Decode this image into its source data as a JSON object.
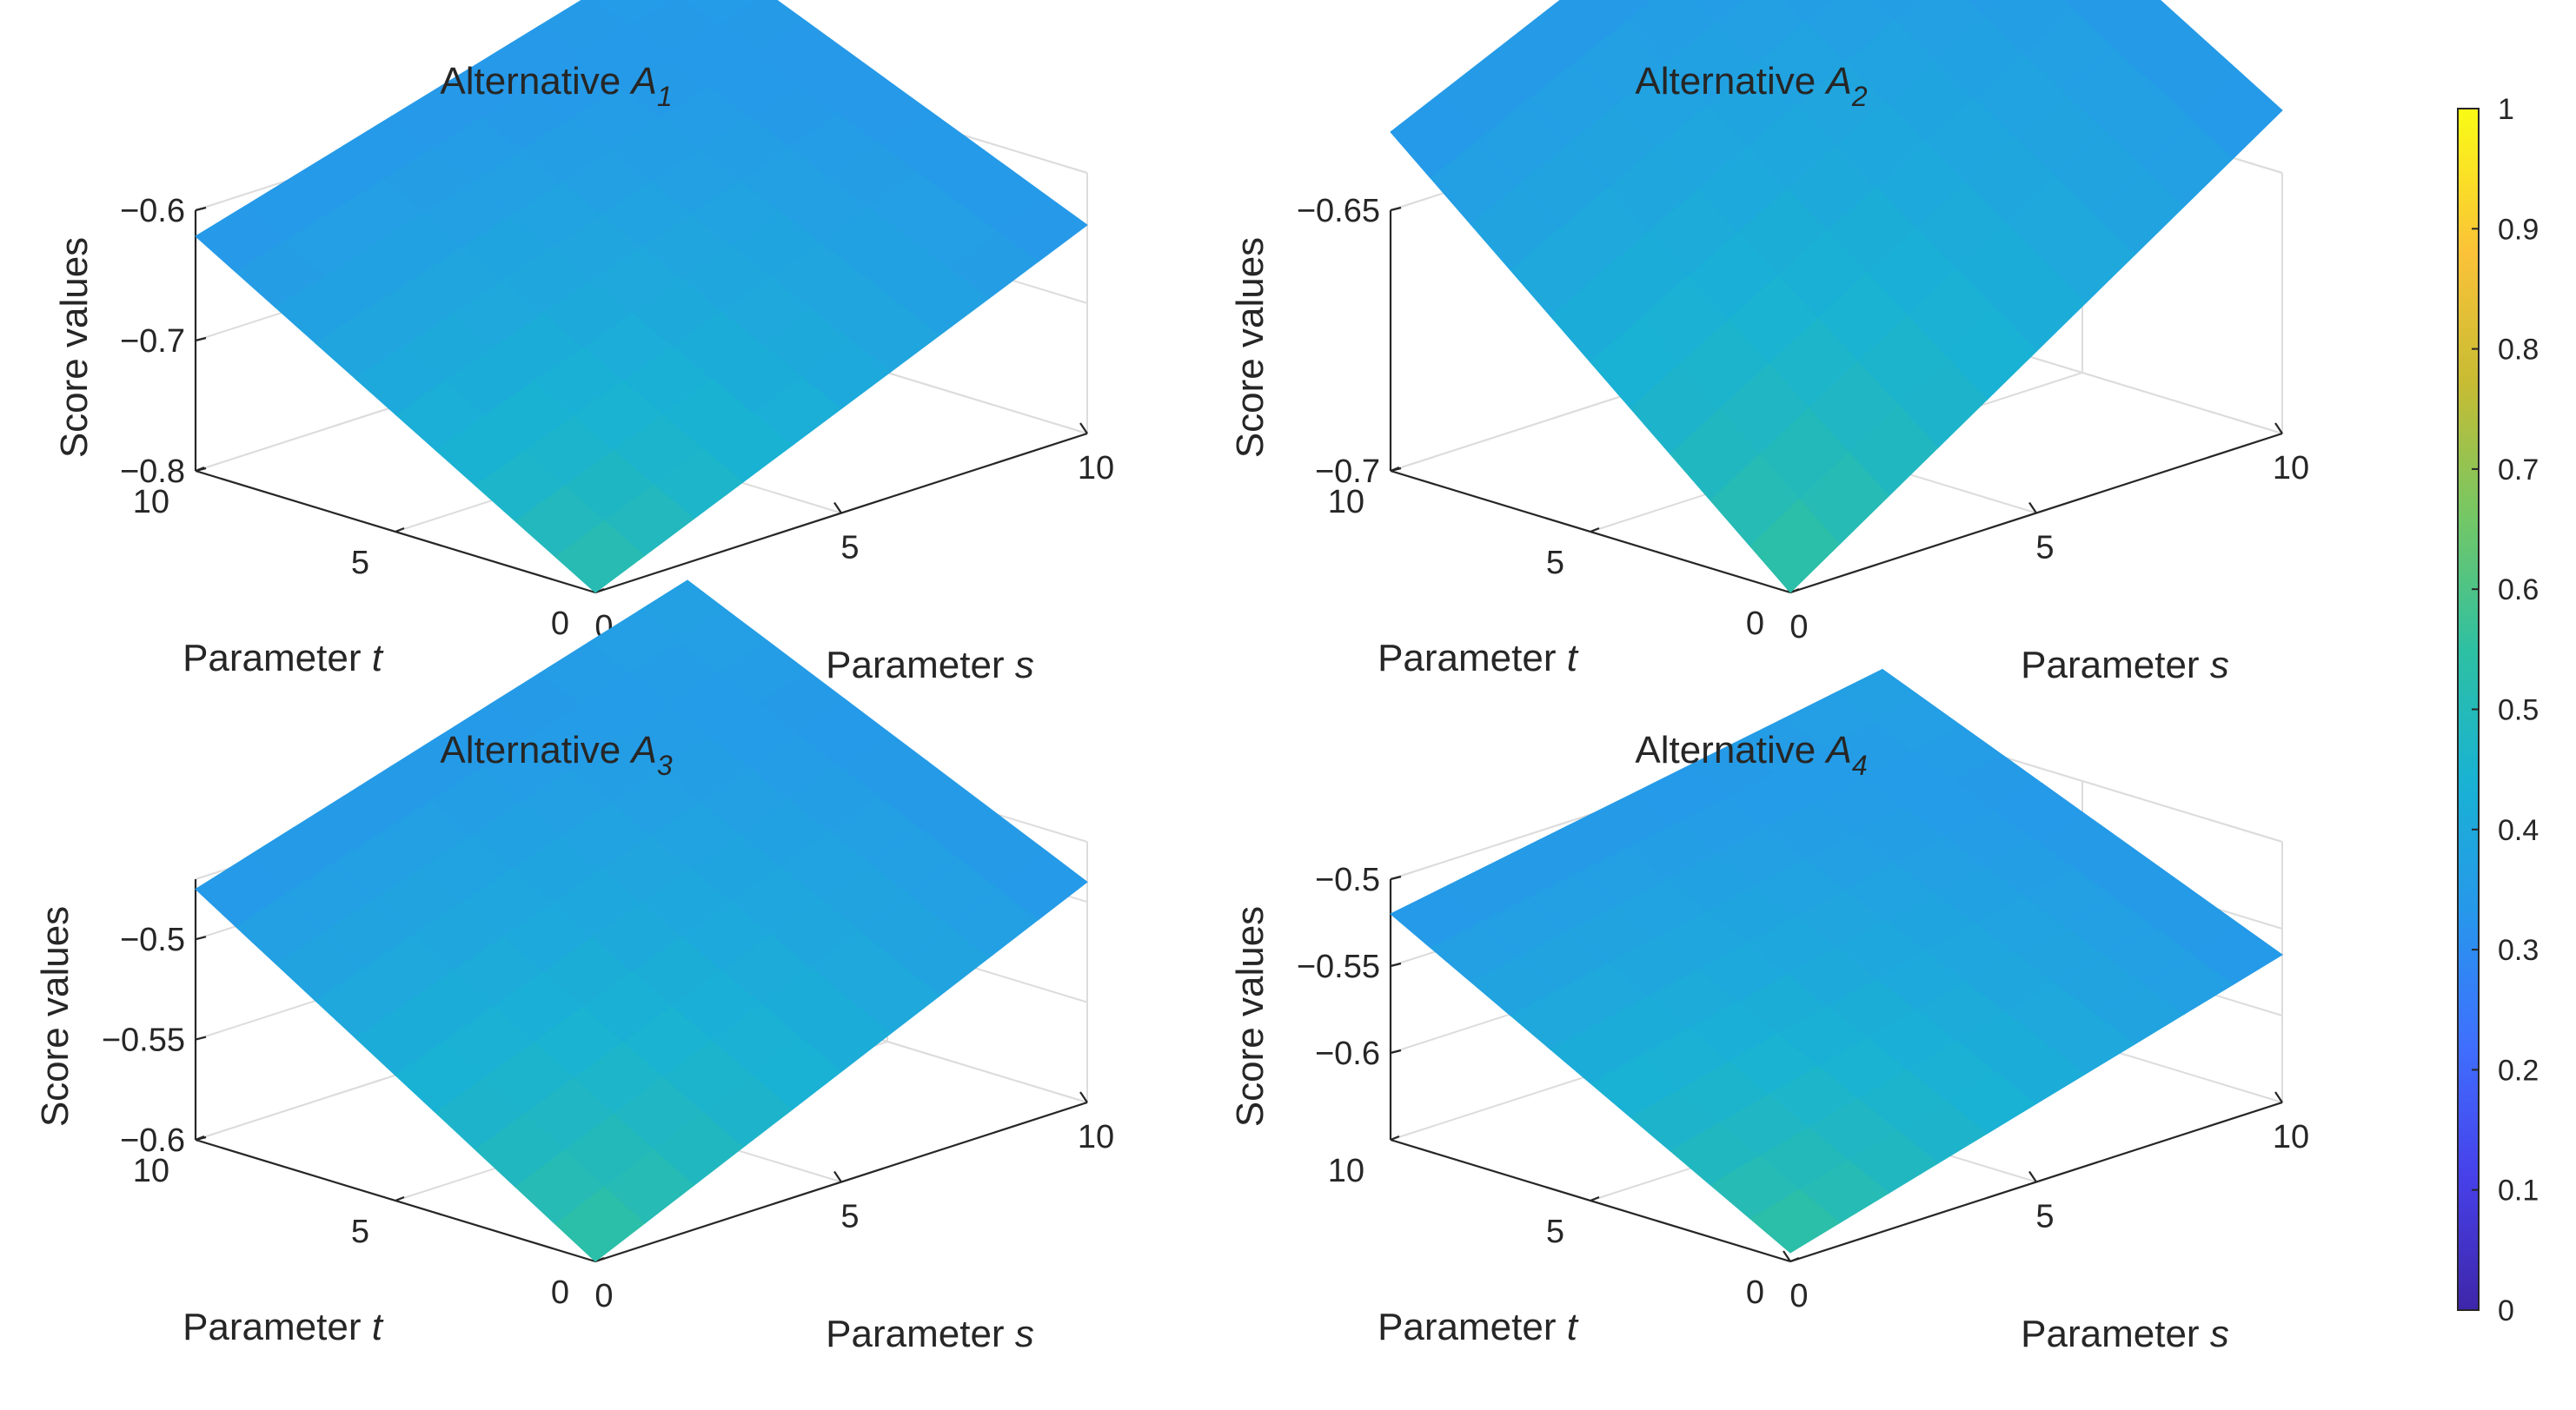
{
  "figure": {
    "colorbar": {
      "colormap": "parula",
      "colors": [
        "#3e26a8",
        "#4740e9",
        "#3f6ffe",
        "#2797eb",
        "#19b2d3",
        "#2ec0a2",
        "#74c765",
        "#c6bc33",
        "#fbc238",
        "#f9fb15"
      ],
      "ticks": [
        "0",
        "0.1",
        "0.2",
        "0.3",
        "0.4",
        "0.5",
        "0.6",
        "0.7",
        "0.8",
        "0.9",
        "1"
      ]
    }
  },
  "chart_data": [
    {
      "type": "surface",
      "title_prefix": "Alternative ",
      "title_var": "A",
      "title_sub": "1",
      "xlabel_prefix": "Parameter ",
      "xlabel_var": "s",
      "ylabel_prefix": "Parameter ",
      "ylabel_var": "t",
      "zlabel": "Score values",
      "xlim": [
        0,
        10
      ],
      "ylim": [
        0,
        10
      ],
      "zlim": [
        -0.8,
        -0.6
      ],
      "xticks": [
        "0",
        "5",
        "10"
      ],
      "yticks": [
        "0",
        "5",
        "10"
      ],
      "zticks": [
        "-0.8",
        "-0.7",
        "-0.6"
      ],
      "zmin_value": -0.8,
      "s_end_value": -0.64,
      "t_end_value": -0.62,
      "color_min": 0.55,
      "color_mid": 0.4,
      "color_max": 0.32
    },
    {
      "type": "surface",
      "title_prefix": "Alternative ",
      "title_var": "A",
      "title_sub": "2",
      "xlabel_prefix": "Parameter ",
      "xlabel_var": "s",
      "ylabel_prefix": "Parameter ",
      "ylabel_var": "t",
      "zlabel": "Score values",
      "xlim": [
        0,
        10
      ],
      "ylim": [
        0,
        10
      ],
      "zlim": [
        -0.7,
        -0.65
      ],
      "xticks": [
        "0",
        "5",
        "10"
      ],
      "yticks": [
        "0",
        "5",
        "10"
      ],
      "zticks": [
        "-0.7",
        "-0.65"
      ],
      "zmin_value": -0.7,
      "s_end_value": -0.638,
      "t_end_value": -0.635,
      "color_min": 0.58,
      "color_mid": 0.42,
      "color_max": 0.32
    },
    {
      "type": "surface",
      "title_prefix": "Alternative ",
      "title_var": "A",
      "title_sub": "3",
      "xlabel_prefix": "Parameter ",
      "xlabel_var": "s",
      "ylabel_prefix": "Parameter ",
      "ylabel_var": "t",
      "zlabel": "Score values",
      "xlim": [
        0,
        10
      ],
      "ylim": [
        0,
        10
      ],
      "zlim": [
        -0.6,
        -0.47
      ],
      "xticks": [
        "0",
        "5",
        "10"
      ],
      "yticks": [
        "0",
        "5",
        "10"
      ],
      "zticks": [
        "-0.6",
        "-0.55",
        "-0.5"
      ],
      "zmin_value": -0.6,
      "s_end_value": -0.49,
      "t_end_value": -0.475,
      "color_min": 0.58,
      "color_mid": 0.42,
      "color_max": 0.32
    },
    {
      "type": "surface",
      "title_prefix": "Alternative ",
      "title_var": "A",
      "title_sub": "4",
      "xlabel_prefix": "Parameter ",
      "xlabel_var": "s",
      "ylabel_prefix": "Parameter ",
      "ylabel_var": "t",
      "zlabel": "Score values",
      "xlim": [
        0,
        10
      ],
      "ylim": [
        0,
        10
      ],
      "zlim": [
        -0.65,
        -0.5
      ],
      "xticks": [
        "0",
        "5",
        "10"
      ],
      "yticks": [
        "0",
        "5",
        "10"
      ],
      "zticks": [
        "-0.6",
        "-0.55",
        "-0.5"
      ],
      "zmin_value": -0.645,
      "s_end_value": -0.565,
      "t_end_value": -0.52,
      "color_min": 0.58,
      "color_mid": 0.42,
      "color_max": 0.32
    }
  ]
}
